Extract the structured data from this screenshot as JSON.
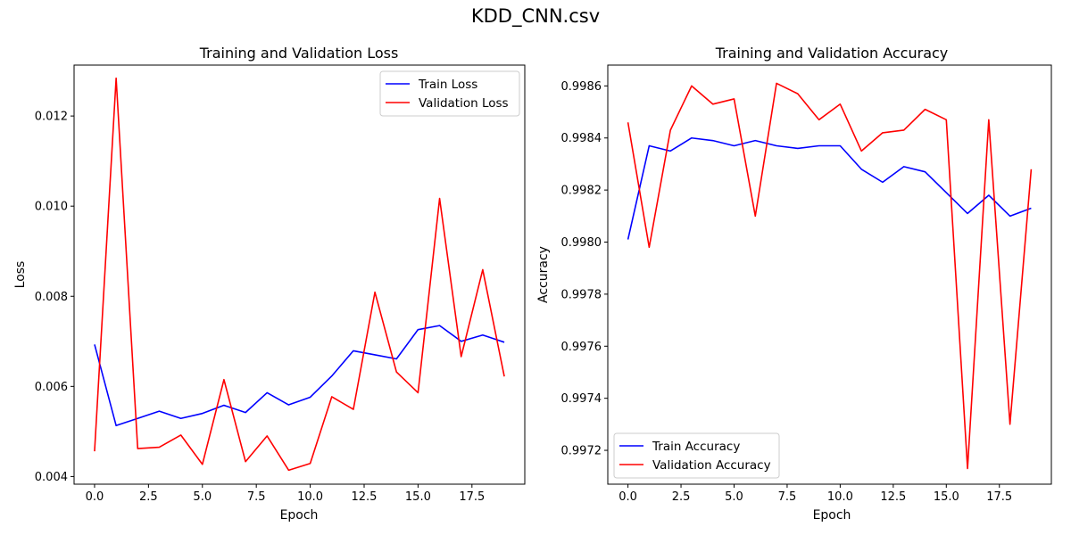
{
  "figure": {
    "suptitle": "KDD_CNN.csv"
  },
  "colors": {
    "train": "#0000ff",
    "validation": "#ff0000"
  },
  "chart_data": [
    {
      "type": "line",
      "title": "Training and Validation Loss",
      "xlabel": "Epoch",
      "ylabel": "Loss",
      "xlim": [
        -0.95,
        19.95
      ],
      "ylim": [
        0.00383,
        0.01313
      ],
      "xticks": [
        0.0,
        2.5,
        5.0,
        7.5,
        10.0,
        12.5,
        15.0,
        17.5
      ],
      "xtick_labels": [
        "0.0",
        "2.5",
        "5.0",
        "7.5",
        "10.0",
        "12.5",
        "15.0",
        "17.5"
      ],
      "yticks": [
        0.004,
        0.006,
        0.008,
        0.01,
        0.012
      ],
      "ytick_labels": [
        "0.004",
        "0.006",
        "0.008",
        "0.010",
        "0.012"
      ],
      "legend_position": "top-right",
      "x": [
        0,
        1,
        2,
        3,
        4,
        5,
        6,
        7,
        8,
        9,
        10,
        11,
        12,
        13,
        14,
        15,
        16,
        17,
        18,
        19
      ],
      "series": [
        {
          "name": "Train Loss",
          "color": "#0000ff",
          "values": [
            0.00693,
            0.00513,
            0.00529,
            0.00545,
            0.00529,
            0.0054,
            0.00558,
            0.00542,
            0.00586,
            0.00559,
            0.00576,
            0.00623,
            0.00679,
            0.0067,
            0.00661,
            0.00726,
            0.00735,
            0.007,
            0.00714,
            0.00698
          ]
        },
        {
          "name": "Validation Loss",
          "color": "#ff0000",
          "values": [
            0.00456,
            0.01284,
            0.00462,
            0.00465,
            0.00492,
            0.00427,
            0.00615,
            0.00433,
            0.0049,
            0.00414,
            0.00429,
            0.00577,
            0.00549,
            0.00809,
            0.00632,
            0.00586,
            0.01017,
            0.00666,
            0.00859,
            0.00622
          ]
        }
      ]
    },
    {
      "type": "line",
      "title": "Training and Validation Accuracy",
      "xlabel": "Epoch",
      "ylabel": "Accuracy",
      "xlim": [
        -0.95,
        19.95
      ],
      "ylim": [
        0.99707,
        0.99868
      ],
      "xticks": [
        0.0,
        2.5,
        5.0,
        7.5,
        10.0,
        12.5,
        15.0,
        17.5
      ],
      "xtick_labels": [
        "0.0",
        "2.5",
        "5.0",
        "7.5",
        "10.0",
        "12.5",
        "15.0",
        "17.5"
      ],
      "yticks": [
        0.9972,
        0.9974,
        0.9976,
        0.9978,
        0.998,
        0.9982,
        0.9984,
        0.9986
      ],
      "ytick_labels": [
        "0.9972",
        "0.9974",
        "0.9976",
        "0.9978",
        "0.9980",
        "0.9982",
        "0.9984",
        "0.9986"
      ],
      "legend_position": "bottom-left",
      "x": [
        0,
        1,
        2,
        3,
        4,
        5,
        6,
        7,
        8,
        9,
        10,
        11,
        12,
        13,
        14,
        15,
        16,
        17,
        18,
        19
      ],
      "series": [
        {
          "name": "Train Accuracy",
          "color": "#0000ff",
          "values": [
            0.99801,
            0.99837,
            0.99835,
            0.9984,
            0.99839,
            0.99837,
            0.99839,
            0.99837,
            0.99836,
            0.99837,
            0.99837,
            0.99828,
            0.99823,
            0.99829,
            0.99827,
            0.99819,
            0.99811,
            0.99818,
            0.9981,
            0.99813
          ]
        },
        {
          "name": "Validation Accuracy",
          "color": "#ff0000",
          "values": [
            0.99846,
            0.99798,
            0.99843,
            0.9986,
            0.99853,
            0.99855,
            0.9981,
            0.99861,
            0.99857,
            0.99847,
            0.99853,
            0.99835,
            0.99842,
            0.99843,
            0.99851,
            0.99847,
            0.99713,
            0.99847,
            0.9973,
            0.99828
          ]
        }
      ]
    }
  ]
}
